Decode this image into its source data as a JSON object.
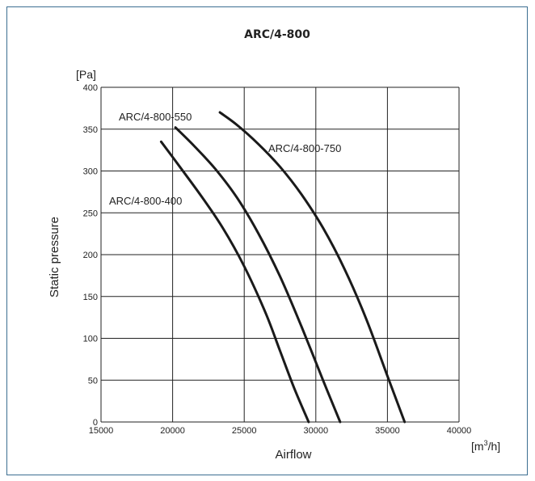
{
  "chart_data": {
    "type": "line",
    "title": "ARC/4-800",
    "xlabel": "Airflow",
    "ylabel": "Static pressure",
    "x_unit": "[m",
    "x_unit_sup": "3",
    "x_unit_tail": "/h]",
    "y_unit": "[Pa]",
    "xlim": [
      15000,
      40000
    ],
    "ylim": [
      0,
      400
    ],
    "x_ticks": [
      15000,
      20000,
      25000,
      30000,
      35000,
      40000
    ],
    "y_ticks": [
      0,
      50,
      100,
      150,
      200,
      250,
      300,
      350,
      400
    ],
    "grid": true,
    "series": [
      {
        "name": "ARC/4-800-400",
        "x": [
          19200,
          20500,
          22000,
          23500,
          25000,
          26500,
          27500,
          28500,
          29500
        ],
        "y": [
          335,
          305,
          270,
          232,
          186,
          130,
          85,
          40,
          0
        ]
      },
      {
        "name": "ARC/4-800-550",
        "x": [
          20200,
          21500,
          23000,
          24500,
          26000,
          27500,
          29000,
          30500,
          31700
        ],
        "y": [
          352,
          330,
          302,
          268,
          225,
          174,
          114,
          50,
          0
        ]
      },
      {
        "name": "ARC/4-800-750",
        "x": [
          23300,
          24500,
          26000,
          27500,
          29000,
          30500,
          32000,
          33500,
          35000,
          36200
        ],
        "y": [
          370,
          355,
          332,
          305,
          272,
          232,
          183,
          124,
          55,
          0
        ]
      }
    ]
  }
}
